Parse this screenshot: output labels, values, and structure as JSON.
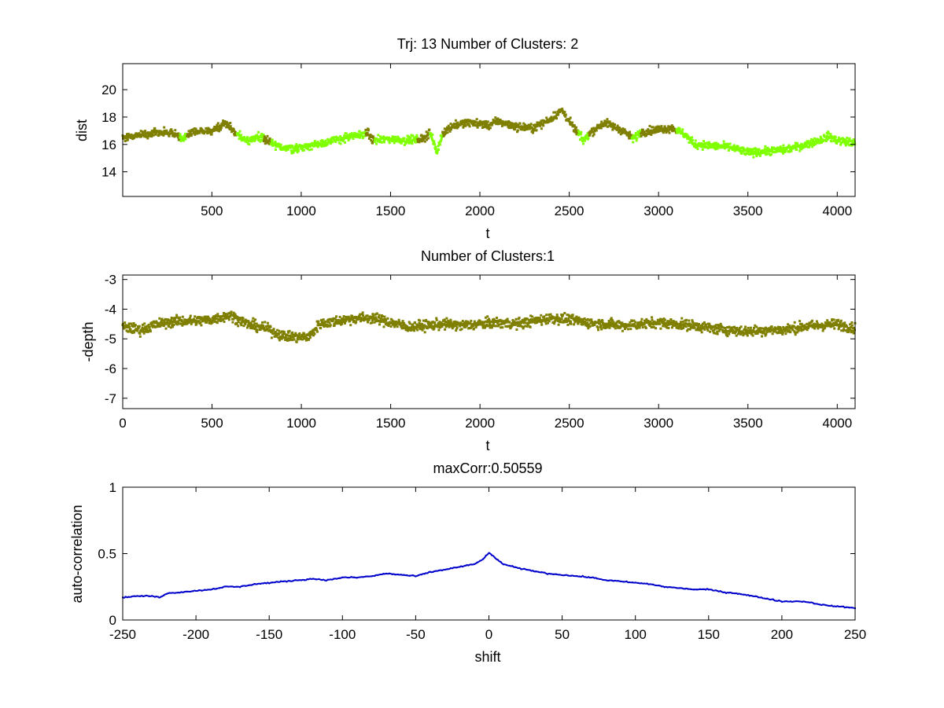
{
  "chart_data": [
    {
      "type": "scatter",
      "title": "Trj: 13 Number of Clusters: 2",
      "xlabel": "t",
      "ylabel": "dist",
      "xlim": [
        1,
        4100
      ],
      "ylim": [
        12.2,
        21.9
      ],
      "xticks": [
        500,
        1000,
        1500,
        2000,
        2500,
        3000,
        3500,
        4000
      ],
      "xtick_labels": [
        "500",
        "1000",
        "1500",
        "2000",
        "2500",
        "3000",
        "3500",
        "4000"
      ],
      "yticks": [
        14,
        16,
        18,
        20
      ],
      "ytick_labels": [
        "14",
        "16",
        "18",
        "20"
      ],
      "clusters": [
        {
          "name": "cluster 1",
          "color": "#7f7f00"
        },
        {
          "name": "cluster 2",
          "color": "#7fff00"
        }
      ],
      "series": [
        {
          "name": "dist",
          "cluster_assignment": [
            [
              0,
              1
            ],
            [
              320,
              2
            ],
            [
              360,
              1
            ],
            [
              640,
              2
            ],
            [
              790,
              1
            ],
            [
              830,
              2
            ],
            [
              1360,
              1
            ],
            [
              1410,
              2
            ],
            [
              1650,
              1
            ],
            [
              1720,
              2
            ],
            [
              1790,
              1
            ],
            [
              2550,
              2
            ],
            [
              2610,
              1
            ],
            [
              2850,
              2
            ],
            [
              2900,
              1
            ],
            [
              3100,
              2
            ],
            [
              4100,
              2
            ]
          ],
          "trend": [
            [
              0,
              16.5
            ],
            [
              100,
              16.7
            ],
            [
              200,
              16.9
            ],
            [
              300,
              16.8
            ],
            [
              330,
              16.4
            ],
            [
              400,
              16.9
            ],
            [
              500,
              17.0
            ],
            [
              580,
              17.6
            ],
            [
              630,
              16.8
            ],
            [
              700,
              16.3
            ],
            [
              780,
              16.6
            ],
            [
              850,
              15.9
            ],
            [
              950,
              15.7
            ],
            [
              1050,
              15.9
            ],
            [
              1150,
              16.2
            ],
            [
              1250,
              16.5
            ],
            [
              1330,
              16.7
            ],
            [
              1370,
              16.9
            ],
            [
              1400,
              16.3
            ],
            [
              1500,
              16.4
            ],
            [
              1600,
              16.3
            ],
            [
              1680,
              16.4
            ],
            [
              1720,
              16.9
            ],
            [
              1760,
              15.4
            ],
            [
              1790,
              16.8
            ],
            [
              1850,
              17.4
            ],
            [
              1950,
              17.6
            ],
            [
              2050,
              17.4
            ],
            [
              2100,
              17.7
            ],
            [
              2200,
              17.3
            ],
            [
              2300,
              17.2
            ],
            [
              2400,
              17.9
            ],
            [
              2460,
              18.5
            ],
            [
              2520,
              17.3
            ],
            [
              2580,
              16.3
            ],
            [
              2620,
              16.9
            ],
            [
              2700,
              17.6
            ],
            [
              2800,
              17.0
            ],
            [
              2860,
              16.4
            ],
            [
              2900,
              16.9
            ],
            [
              3000,
              17.1
            ],
            [
              3080,
              17.2
            ],
            [
              3150,
              16.7
            ],
            [
              3200,
              16.0
            ],
            [
              3300,
              15.9
            ],
            [
              3400,
              15.8
            ],
            [
              3500,
              15.4
            ],
            [
              3600,
              15.5
            ],
            [
              3700,
              15.6
            ],
            [
              3800,
              15.9
            ],
            [
              3900,
              16.3
            ],
            [
              3950,
              16.6
            ],
            [
              4000,
              16.3
            ],
            [
              4100,
              16.1
            ]
          ]
        }
      ]
    },
    {
      "type": "scatter",
      "title": "Number of Clusters:1",
      "xlabel": "t",
      "ylabel": "-depth",
      "xlim": [
        0,
        4100
      ],
      "ylim": [
        -7.35,
        -2.85
      ],
      "xticks": [
        0,
        500,
        1000,
        1500,
        2000,
        2500,
        3000,
        3500,
        4000
      ],
      "xtick_labels": [
        "0",
        "500",
        "1000",
        "1500",
        "2000",
        "2500",
        "3000",
        "3500",
        "4000"
      ],
      "yticks": [
        -7,
        -6,
        -5,
        -4,
        -3
      ],
      "ytick_labels": [
        "-7",
        "-6",
        "-5",
        "-4",
        "-3"
      ],
      "series": [
        {
          "name": "-depth",
          "color": "#7f7f00",
          "trend": [
            [
              0,
              -4.6
            ],
            [
              100,
              -4.7
            ],
            [
              200,
              -4.5
            ],
            [
              300,
              -4.4
            ],
            [
              400,
              -4.4
            ],
            [
              500,
              -4.35
            ],
            [
              600,
              -4.2
            ],
            [
              700,
              -4.5
            ],
            [
              800,
              -4.65
            ],
            [
              900,
              -4.9
            ],
            [
              1000,
              -4.95
            ],
            [
              1050,
              -4.9
            ],
            [
              1100,
              -4.5
            ],
            [
              1200,
              -4.4
            ],
            [
              1300,
              -4.3
            ],
            [
              1400,
              -4.3
            ],
            [
              1500,
              -4.45
            ],
            [
              1600,
              -4.6
            ],
            [
              1700,
              -4.55
            ],
            [
              1800,
              -4.5
            ],
            [
              1900,
              -4.55
            ],
            [
              2000,
              -4.5
            ],
            [
              2100,
              -4.45
            ],
            [
              2200,
              -4.5
            ],
            [
              2300,
              -4.4
            ],
            [
              2400,
              -4.3
            ],
            [
              2500,
              -4.35
            ],
            [
              2600,
              -4.45
            ],
            [
              2700,
              -4.5
            ],
            [
              2800,
              -4.55
            ],
            [
              2900,
              -4.5
            ],
            [
              3000,
              -4.45
            ],
            [
              3100,
              -4.5
            ],
            [
              3200,
              -4.55
            ],
            [
              3300,
              -4.65
            ],
            [
              3400,
              -4.7
            ],
            [
              3500,
              -4.75
            ],
            [
              3600,
              -4.7
            ],
            [
              3700,
              -4.7
            ],
            [
              3800,
              -4.6
            ],
            [
              3900,
              -4.55
            ],
            [
              4000,
              -4.5
            ],
            [
              4100,
              -4.65
            ]
          ]
        }
      ]
    },
    {
      "type": "line",
      "title": "maxCorr:0.50559",
      "xlabel": "shift",
      "ylabel": "auto-correlation",
      "xlim": [
        -250,
        250
      ],
      "ylim": [
        0,
        1
      ],
      "xticks": [
        -250,
        -200,
        -150,
        -100,
        -50,
        0,
        50,
        100,
        150,
        200,
        250
      ],
      "xtick_labels": [
        "-250",
        "-200",
        "-150",
        "-100",
        "-50",
        "0",
        "50",
        "100",
        "150",
        "200",
        "250"
      ],
      "yticks": [
        0,
        0.5,
        1
      ],
      "ytick_labels": [
        "0",
        "0.5",
        "1"
      ],
      "series": [
        {
          "name": "auto-correlation",
          "color": "#0000cc",
          "x": [
            -250,
            -240,
            -230,
            -225,
            -220,
            -210,
            -200,
            -190,
            -180,
            -170,
            -160,
            -150,
            -140,
            -130,
            -120,
            -110,
            -100,
            -90,
            -80,
            -70,
            -60,
            -50,
            -40,
            -30,
            -20,
            -10,
            -5,
            0,
            5,
            10,
            20,
            30,
            40,
            50,
            60,
            70,
            80,
            90,
            100,
            110,
            120,
            130,
            140,
            150,
            160,
            170,
            180,
            190,
            200,
            210,
            215,
            220,
            230,
            240,
            250
          ],
          "y": [
            0.17,
            0.18,
            0.18,
            0.17,
            0.2,
            0.21,
            0.22,
            0.23,
            0.25,
            0.25,
            0.27,
            0.28,
            0.29,
            0.3,
            0.31,
            0.3,
            0.32,
            0.32,
            0.33,
            0.35,
            0.34,
            0.33,
            0.36,
            0.38,
            0.4,
            0.42,
            0.45,
            0.505,
            0.46,
            0.42,
            0.39,
            0.37,
            0.35,
            0.34,
            0.33,
            0.32,
            0.3,
            0.29,
            0.28,
            0.27,
            0.25,
            0.24,
            0.23,
            0.23,
            0.21,
            0.2,
            0.18,
            0.16,
            0.14,
            0.14,
            0.14,
            0.13,
            0.11,
            0.1,
            0.09
          ]
        }
      ]
    }
  ]
}
